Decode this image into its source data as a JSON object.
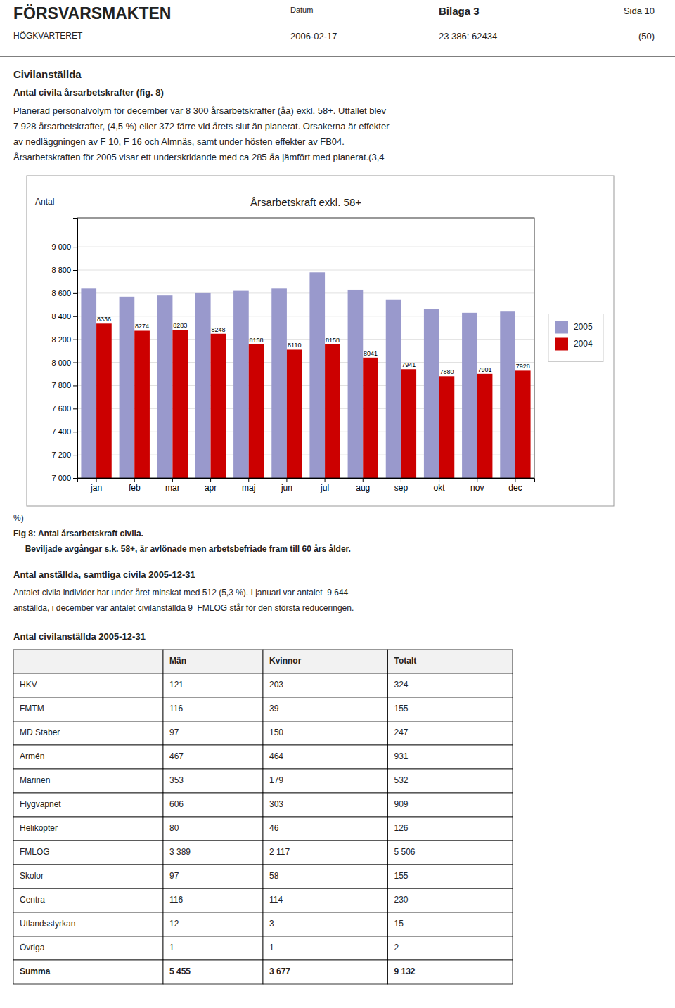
{
  "page": {
    "header_title": "FÖRSVARSMAKTEN",
    "header_subtitle": "HÖGKVARTERET",
    "header_datum_label": "Datum",
    "header_datum_value": "2006-02-17",
    "header_bilaga": "Bilaga 3",
    "header_ref": "23 386: 62434",
    "sida_line1": "Sida 10",
    "sida_line2": "(50)",
    "section_title": "Civilanställda",
    "subsection_title": "Antal civila årsarbetskrafter (fig. 8)",
    "para1_lines": [
      "Planerad personalvolym för december var 8 300 årsarbetskrafter (åa) exkl. 58+. Utfallet blev",
      "7 928 årsarbetskrafter, (4,5 %) eller 372 färre vid årets slut än planerat. Orsakerna är effekter",
      "av nedläggningen av F 10, F 16 och Almnäs, samt under hösten effekter av FB04.",
      "Årsarbetskraften för 2005 visar ett underskridande med ca 285 åa jämfört med planerat.(3,4"
    ],
    "pct_end": "%)",
    "fig_caption1": "Fig 8: Antal årsarbetskraft civila.",
    "fig_caption2": "     Beviljade avgångar s.k. 58+, är avlönade men arbetsbefriade fram till 60 års ålder.",
    "section2_title": "Antal anställda, samtliga civila 2005-12-31",
    "para2_lines": [
      "Antalet civila individer har under året minskat med 512 (5,3 %). I januari var antalet  9 644",
      "anställda, i december var antalet civilanställda 9  FMLOG står för den största reduceringen."
    ]
  },
  "chart_data": {
    "type": "bar",
    "title": "Årsarbetskraft exkl. 58+",
    "ylabel": "Antal",
    "categories": [
      "jan",
      "feb",
      "mar",
      "apr",
      "maj",
      "jun",
      "jul",
      "aug",
      "sep",
      "okt",
      "nov",
      "dec"
    ],
    "series": [
      {
        "name": "2005",
        "color": "#9999CC",
        "values": [
          8640,
          8570,
          8580,
          8600,
          8620,
          8640,
          8780,
          8630,
          8540,
          8460,
          8430,
          8440
        ]
      },
      {
        "name": "2004",
        "color": "#CC0000",
        "data_labels": true,
        "values": [
          8336,
          8274,
          8283,
          8248,
          8158,
          8110,
          8158,
          8041,
          7941,
          7880,
          7901,
          7928
        ]
      }
    ],
    "ylim": [
      7000,
      9250
    ],
    "yticks": [
      {
        "value": 7000,
        "label": "7 000"
      },
      {
        "value": 7200,
        "label": "7 200"
      },
      {
        "value": 7400,
        "label": "7 400"
      },
      {
        "value": 7600,
        "label": "7 600"
      },
      {
        "value": 7800,
        "label": "7 800"
      },
      {
        "value": 8000,
        "label": "8 000"
      },
      {
        "value": 8200,
        "label": "8 200"
      },
      {
        "value": 8400,
        "label": "8 400"
      },
      {
        "value": 8600,
        "label": "8 600"
      },
      {
        "value": 8800,
        "label": "8 800"
      },
      {
        "value": 9000,
        "label": "9 000"
      }
    ],
    "grid": true,
    "legend": "right"
  },
  "table": {
    "title": "Antal civilanställda 2005-12-31",
    "headers": [
      null,
      "Män",
      "Kvinnor",
      "Totalt"
    ],
    "rows": [
      [
        "HKV",
        "121",
        "203",
        "324"
      ],
      [
        "FMTM",
        "116",
        "39",
        "155"
      ],
      [
        "MD Staber",
        "97",
        "150",
        "247"
      ],
      [
        "Armén",
        "467",
        "464",
        "931"
      ],
      [
        "Marinen",
        "353",
        "179",
        "532"
      ],
      [
        "Flygvapnet",
        "606",
        "303",
        "909"
      ],
      [
        "Helikopter",
        "80",
        "46",
        "126"
      ],
      [
        "FMLOG",
        "3 389",
        "2 117",
        "5 506"
      ],
      [
        "Skolor",
        "97",
        "58",
        "155"
      ],
      [
        "Centra",
        "116",
        "114",
        "230"
      ],
      [
        "Utlandsstyrkan",
        "12",
        "3",
        "15"
      ],
      [
        "Övriga",
        "1",
        "1",
        "2"
      ],
      [
        "Summa",
        "5 455",
        "3 677",
        "9 132"
      ]
    ]
  }
}
